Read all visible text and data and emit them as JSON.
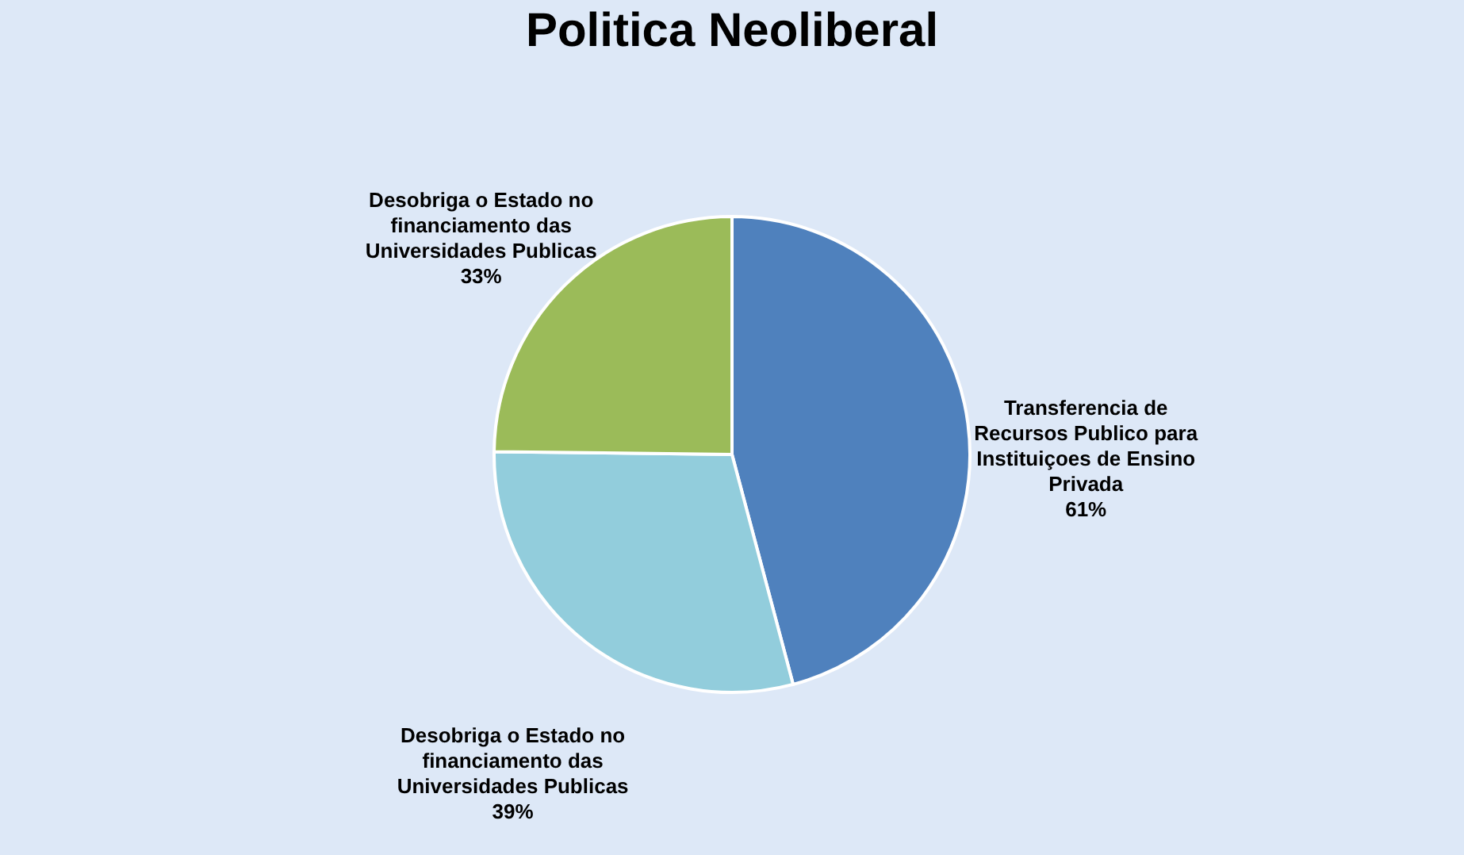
{
  "chart_data": {
    "type": "pie",
    "title": "Politica Neoliberal",
    "categories": [
      "Transferencia de Recursos Publico para Instituiçoes de Ensino Privada",
      "Desobriga o Estado no financiamento das Universidades Publicas",
      "Desobriga o Estado no financiamento das Universidades Publicas"
    ],
    "values": [
      61,
      39,
      33
    ],
    "value_labels": [
      "61%",
      "39%",
      "33%"
    ],
    "colors": [
      "#4f81bd",
      "#92cddc",
      "#9bbb59"
    ],
    "legend": false
  }
}
